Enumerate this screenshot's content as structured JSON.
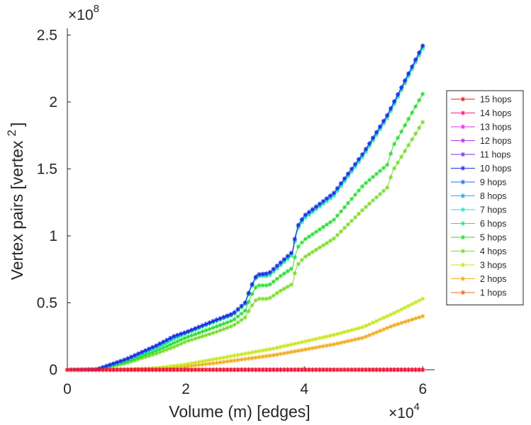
{
  "chart_data": {
    "type": "line",
    "title": "",
    "xlabel": "Volume (m) [edges]",
    "ylabel": "Vertex pairs [vertex",
    "ylabel_superscript": "2",
    "ylabel_close": "]",
    "x_exponent_base": "×10",
    "x_exponent_power": "4",
    "y_exponent_base": "×10",
    "y_exponent_power": "8",
    "x_units": "×10^4 edges",
    "y_units": "×10^8 vertex^2",
    "xlim": [
      0,
      6.2
    ],
    "ylim": [
      0,
      2.55
    ],
    "xticks": [
      0,
      2,
      4,
      6
    ],
    "xtick_labels": [
      "0",
      "2",
      "4",
      "6"
    ],
    "yticks": [
      0,
      0.5,
      1,
      1.5,
      2,
      2.5
    ],
    "ytick_labels": [
      "0",
      "0.5",
      "1",
      "1.5",
      "2",
      "2.5"
    ],
    "grid": false,
    "legend_position": "right",
    "series": [
      {
        "name": "15 hops",
        "color": "#f0141e",
        "x": [
          0,
          1,
          2,
          3,
          4,
          5,
          6
        ],
        "values": [
          0,
          0,
          0,
          0,
          0,
          0,
          0
        ]
      },
      {
        "name": "14 hops",
        "color": "#f01e82",
        "x": [
          0,
          1,
          2,
          3,
          4,
          5,
          6
        ],
        "values": [
          0,
          0,
          0,
          0,
          0,
          0,
          0
        ]
      },
      {
        "name": "13 hops",
        "color": "#e628e6",
        "x": [
          0,
          1,
          2,
          3,
          4,
          5,
          6
        ],
        "values": [
          0,
          0,
          0,
          0,
          0,
          0,
          0
        ]
      },
      {
        "name": "12 hops",
        "color": "#b432e6",
        "x": [
          0,
          1,
          2,
          3,
          4,
          5,
          6
        ],
        "values": [
          0,
          0,
          0,
          0,
          0,
          0,
          0
        ]
      },
      {
        "name": "11 hops",
        "color": "#7832e6",
        "x": [
          0,
          1,
          2,
          3,
          4,
          5,
          6
        ],
        "values": [
          0,
          0,
          0,
          0,
          0,
          0,
          0
        ]
      },
      {
        "name": "10 hops",
        "color": "#2828e6",
        "x": [
          0,
          0.5,
          1,
          1.5,
          1.8,
          2,
          2.5,
          2.8,
          3,
          3.1,
          3.2,
          3.4,
          3.6,
          3.8,
          3.85,
          3.9,
          4,
          4.5,
          5,
          5.4,
          6
        ],
        "values": [
          0,
          0.003,
          0.08,
          0.18,
          0.25,
          0.28,
          0.37,
          0.42,
          0.5,
          0.62,
          0.71,
          0.72,
          0.8,
          0.88,
          1.0,
          1.08,
          1.15,
          1.32,
          1.62,
          1.9,
          2.42
        ]
      },
      {
        "name": "9 hops",
        "color": "#1e6ef0",
        "x": [
          0,
          0.5,
          1,
          1.5,
          1.8,
          2,
          2.5,
          2.8,
          3,
          3.1,
          3.2,
          3.4,
          3.6,
          3.8,
          3.85,
          3.9,
          4,
          4.5,
          5,
          5.4,
          6
        ],
        "values": [
          0,
          0.003,
          0.08,
          0.18,
          0.25,
          0.28,
          0.37,
          0.42,
          0.5,
          0.62,
          0.71,
          0.72,
          0.8,
          0.88,
          1.0,
          1.08,
          1.15,
          1.32,
          1.62,
          1.9,
          2.42
        ]
      },
      {
        "name": "8 hops",
        "color": "#1eaaf0",
        "x": [
          0,
          0.5,
          1,
          1.5,
          1.8,
          2,
          2.5,
          2.8,
          3,
          3.1,
          3.2,
          3.4,
          3.6,
          3.8,
          3.85,
          3.9,
          4,
          4.5,
          5,
          5.4,
          6
        ],
        "values": [
          0,
          0.003,
          0.08,
          0.18,
          0.25,
          0.28,
          0.37,
          0.42,
          0.5,
          0.62,
          0.71,
          0.72,
          0.8,
          0.88,
          1.0,
          1.08,
          1.15,
          1.32,
          1.62,
          1.9,
          2.42
        ]
      },
      {
        "name": "7 hops",
        "color": "#1ee6d2",
        "x": [
          0,
          0.5,
          1,
          1.5,
          1.8,
          2,
          2.5,
          2.8,
          3,
          3.1,
          3.2,
          3.4,
          3.6,
          3.8,
          3.85,
          3.9,
          4,
          4.5,
          5,
          5.4,
          6
        ],
        "values": [
          0,
          0.003,
          0.08,
          0.17,
          0.24,
          0.28,
          0.37,
          0.42,
          0.5,
          0.62,
          0.7,
          0.71,
          0.79,
          0.87,
          0.99,
          1.07,
          1.14,
          1.31,
          1.61,
          1.89,
          2.41
        ]
      },
      {
        "name": "6 hops",
        "color": "#1ee68c",
        "x": [
          0,
          0.5,
          1,
          1.5,
          1.8,
          2,
          2.5,
          2.8,
          3,
          3.1,
          3.2,
          3.4,
          3.6,
          3.8,
          3.85,
          3.9,
          4,
          4.5,
          5,
          5.4,
          6
        ],
        "values": [
          0,
          0.003,
          0.07,
          0.16,
          0.23,
          0.27,
          0.36,
          0.41,
          0.49,
          0.61,
          0.7,
          0.7,
          0.78,
          0.86,
          0.98,
          1.06,
          1.13,
          1.3,
          1.6,
          1.88,
          2.4
        ]
      },
      {
        "name": "5 hops",
        "color": "#28dc32",
        "x": [
          0,
          0.5,
          1,
          1.5,
          1.8,
          2,
          2.5,
          2.8,
          3,
          3.1,
          3.2,
          3.4,
          3.6,
          3.8,
          3.85,
          3.9,
          4,
          4.5,
          5,
          5.4,
          5.5,
          6
        ],
        "values": [
          0,
          0.002,
          0.06,
          0.14,
          0.2,
          0.24,
          0.32,
          0.37,
          0.44,
          0.55,
          0.63,
          0.63,
          0.7,
          0.76,
          0.86,
          0.92,
          0.97,
          1.12,
          1.38,
          1.53,
          1.67,
          2.06
        ]
      },
      {
        "name": "4 hops",
        "color": "#78dc28",
        "x": [
          0,
          0.5,
          1,
          1.5,
          1.8,
          2,
          2.5,
          2.8,
          3,
          3.1,
          3.2,
          3.4,
          3.6,
          3.8,
          3.85,
          3.9,
          4,
          4.5,
          5,
          5.4,
          5.5,
          6
        ],
        "values": [
          0,
          0.002,
          0.05,
          0.12,
          0.17,
          0.21,
          0.28,
          0.33,
          0.39,
          0.47,
          0.53,
          0.53,
          0.59,
          0.64,
          0.74,
          0.79,
          0.84,
          0.98,
          1.2,
          1.36,
          1.49,
          1.85
        ]
      },
      {
        "name": "3 hops",
        "color": "#c8e61e",
        "x": [
          0,
          1,
          1.5,
          2,
          2.5,
          3,
          3.5,
          4,
          4.5,
          5,
          5.5,
          6
        ],
        "values": [
          0,
          0.003,
          0.012,
          0.04,
          0.08,
          0.12,
          0.16,
          0.21,
          0.26,
          0.32,
          0.42,
          0.53
        ]
      },
      {
        "name": "2 hops",
        "color": "#f0aa1e",
        "x": [
          0,
          1,
          1.5,
          2,
          2.5,
          3,
          3.5,
          4,
          4.5,
          5,
          5.5,
          6
        ],
        "values": [
          0,
          0.002,
          0.008,
          0.025,
          0.05,
          0.08,
          0.11,
          0.15,
          0.19,
          0.24,
          0.33,
          0.4
        ]
      },
      {
        "name": "1 hops",
        "color": "#f0641e",
        "x": [
          0,
          1,
          2,
          3,
          4,
          5,
          6
        ],
        "values": [
          0,
          0,
          0,
          0,
          0,
          0,
          0
        ]
      }
    ]
  }
}
